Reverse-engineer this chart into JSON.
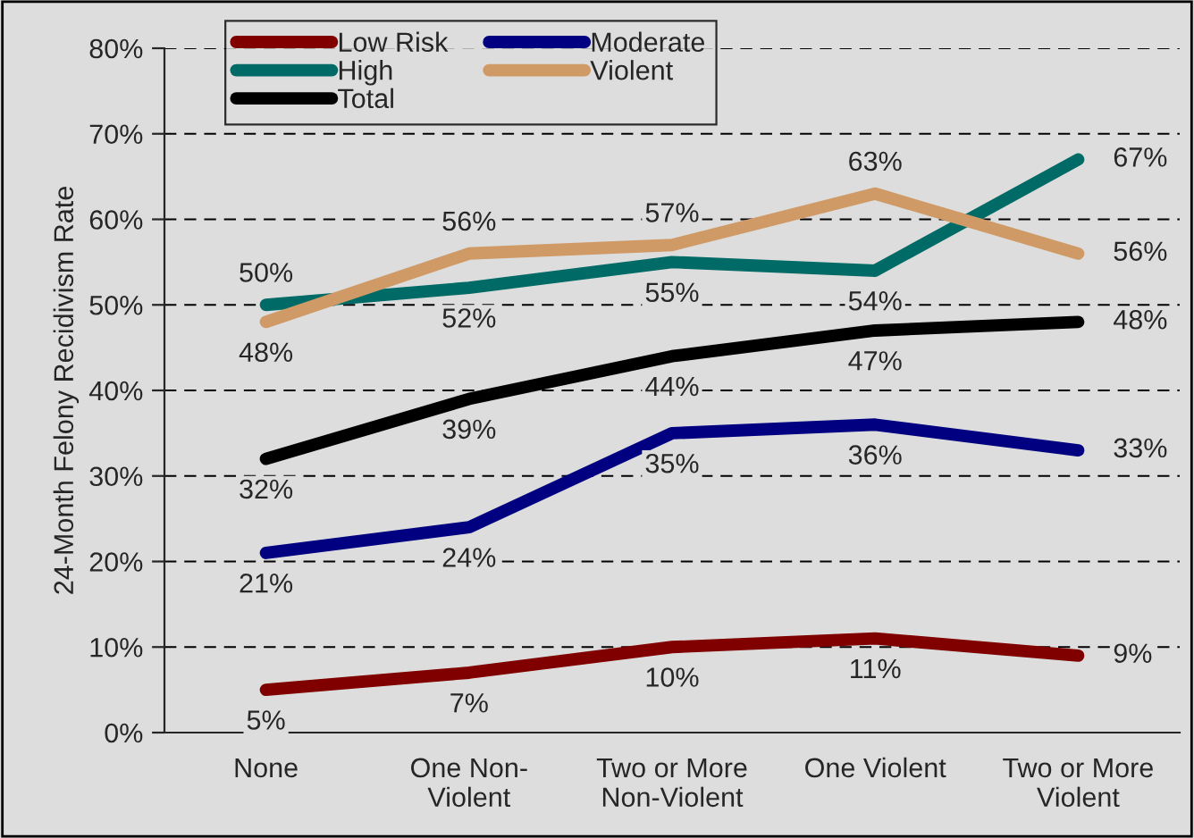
{
  "chart_data": {
    "type": "line",
    "ylabel": "24-Month Felony Recidivism Rate",
    "categories": [
      "None",
      "One Non-\nViolent",
      "Two or More\nNon-Violent",
      "One Violent",
      "Two or More\nViolent"
    ],
    "series": [
      {
        "name": "Low Risk",
        "color": "#800000",
        "values": [
          5,
          7,
          10,
          11,
          9
        ],
        "value_labels": [
          "5%",
          "7%",
          "10%",
          "11%",
          "9%"
        ]
      },
      {
        "name": "Moderate",
        "color": "#000080",
        "values": [
          21,
          24,
          35,
          36,
          33
        ],
        "value_labels": [
          "21%",
          "24%",
          "35%",
          "36%",
          "33%"
        ]
      },
      {
        "name": "High",
        "color": "#006b66",
        "values": [
          50,
          52,
          55,
          54,
          67
        ],
        "value_labels": [
          "50%",
          "52%",
          "55%",
          "54%",
          "67%"
        ]
      },
      {
        "name": "Violent",
        "color": "#d09a66",
        "values": [
          48,
          56,
          57,
          63,
          56
        ],
        "value_labels": [
          "48%",
          "56%",
          "57%",
          "63%",
          "56%"
        ]
      },
      {
        "name": "Total",
        "color": "#000000",
        "values": [
          32,
          39,
          44,
          47,
          48
        ],
        "value_labels": [
          "32%",
          "39%",
          "44%",
          "47%",
          "48%"
        ]
      }
    ],
    "ylim": [
      0,
      80
    ],
    "yticks": [
      {
        "value": 0,
        "label": "0%"
      },
      {
        "value": 10,
        "label": "10%"
      },
      {
        "value": 20,
        "label": "20%"
      },
      {
        "value": 30,
        "label": "30%"
      },
      {
        "value": 40,
        "label": "40%"
      },
      {
        "value": 50,
        "label": "50%"
      },
      {
        "value": 60,
        "label": "60%"
      },
      {
        "value": 70,
        "label": "70%"
      },
      {
        "value": 80,
        "label": "80%"
      }
    ],
    "grid": "y",
    "legend": "top left",
    "marker": "none",
    "line_style": "solid"
  }
}
